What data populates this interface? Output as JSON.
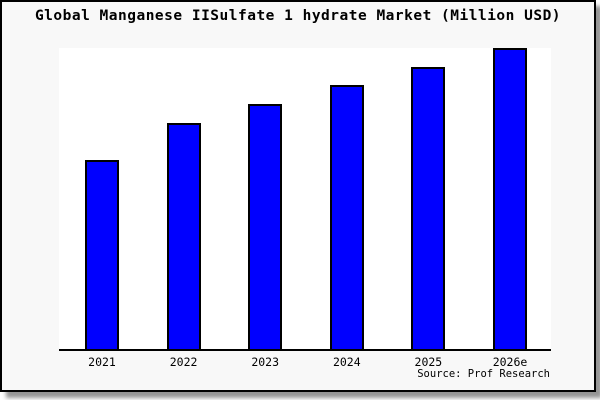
{
  "title": "Global Manganese IISulfate 1 hydrate Market (Million USD)",
  "source_credit": "Source: Prof Research",
  "colors": {
    "frame_background": "#f8f8f8",
    "plot_background": "#ffffff",
    "bar_fill": "#0000ff",
    "bar_border": "#000000",
    "axis": "#000000",
    "frame_border": "#000000",
    "shadow": "#999999"
  },
  "chart_data": {
    "type": "bar",
    "title": "Global Manganese IISulfate 1 hydrate Market (Million USD)",
    "categories": [
      "2021",
      "2022",
      "2023",
      "2024",
      "2025",
      "2026e"
    ],
    "values": [
      189,
      226,
      245,
      264,
      282,
      301
    ],
    "value_note": "no y-axis ticks or value labels shown; values are relative bar heights (px) estimated from the plot, baseline 0 at axis",
    "xlabel": "",
    "ylabel": "",
    "ylim": [
      0,
      303
    ],
    "grid": false,
    "legend": false,
    "bar_color": "#0000ff",
    "bar_edge_color": "#000000",
    "source": "Source: Prof Research"
  }
}
